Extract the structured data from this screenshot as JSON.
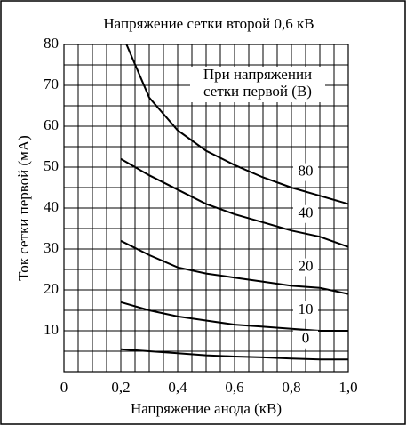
{
  "chart_data": {
    "type": "line",
    "title": "Напряжение сетки второй 0,6 кВ",
    "xlabel": "Напряжение анода (кВ)",
    "ylabel": "Ток сетки первой (мА)",
    "legend_title": [
      "При напряжении",
      "сетки первой (В)"
    ],
    "xlim": [
      0,
      1.0
    ],
    "ylim": [
      0,
      80
    ],
    "xticks": [
      0,
      {
        "value": 0.2,
        "label": "0,2"
      },
      {
        "value": 0.4,
        "label": "0,4"
      },
      {
        "value": 0.6,
        "label": "0,6"
      },
      {
        "value": 0.8,
        "label": "0,8"
      },
      {
        "value": 1.0,
        "label": "1,0"
      }
    ],
    "yticks": [
      10,
      20,
      30,
      40,
      50,
      60,
      70,
      80
    ],
    "grid": true,
    "series": [
      {
        "name": "80",
        "color": "#000000",
        "x": [
          0.22,
          0.3,
          0.4,
          0.5,
          0.6,
          0.7,
          0.8,
          0.9,
          1.0
        ],
        "values": [
          80,
          67,
          59,
          54,
          50.5,
          47.5,
          45,
          43,
          41
        ]
      },
      {
        "name": "40",
        "color": "#000000",
        "x": [
          0.2,
          0.3,
          0.4,
          0.5,
          0.6,
          0.7,
          0.8,
          0.9,
          1.0
        ],
        "values": [
          52,
          48,
          44.5,
          41,
          38.5,
          36.5,
          34.5,
          33,
          30.5
        ]
      },
      {
        "name": "20",
        "color": "#000000",
        "x": [
          0.2,
          0.3,
          0.4,
          0.5,
          0.6,
          0.7,
          0.8,
          0.9,
          1.0
        ],
        "values": [
          32,
          28.5,
          25.5,
          24,
          23,
          22,
          21,
          20.5,
          19
        ]
      },
      {
        "name": "10",
        "color": "#000000",
        "x": [
          0.2,
          0.3,
          0.4,
          0.5,
          0.6,
          0.7,
          0.8,
          0.9,
          1.0
        ],
        "values": [
          17,
          15,
          13.5,
          12.5,
          11.5,
          11,
          10.5,
          10,
          10
        ]
      },
      {
        "name": "0",
        "color": "#000000",
        "x": [
          0.2,
          0.3,
          0.4,
          0.5,
          0.6,
          0.7,
          0.8,
          0.9,
          1.0
        ],
        "values": [
          5.5,
          5,
          4.5,
          4,
          3.7,
          3.5,
          3.2,
          3,
          3
        ]
      }
    ]
  }
}
